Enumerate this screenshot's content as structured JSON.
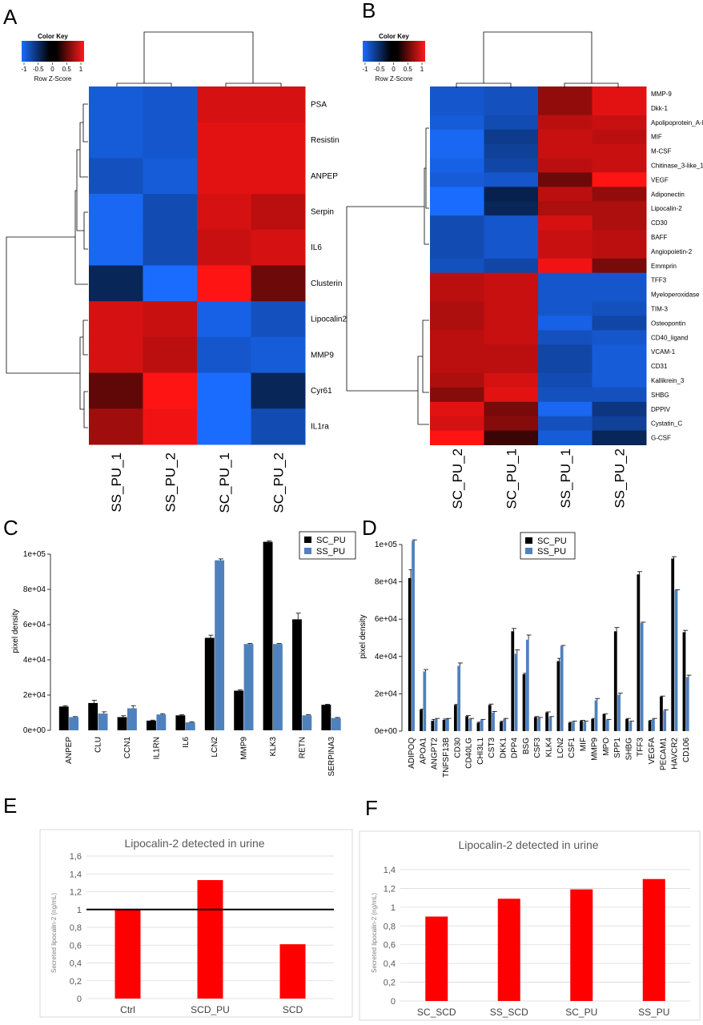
{
  "panels": {
    "a": "A",
    "b": "B",
    "c": "C",
    "d": "D",
    "e": "E",
    "f": "F"
  },
  "color_key": {
    "title": "Color Key",
    "xlabel": "Row Z-Score",
    "ticks": [
      "-1",
      "-0.5",
      "0",
      "0.5",
      "1"
    ],
    "low_color": "#1a6cff",
    "mid_color": "#000000",
    "high_color": "#ff1a1a"
  },
  "chart_data": [
    {
      "id": "A",
      "type": "heatmap",
      "columns": [
        "SS_PU_1",
        "SS_PU_2",
        "SC_PU_1",
        "SC_PU_2"
      ],
      "rows": [
        "PSA",
        "Resistin",
        "ANPEP",
        "Serpin",
        "IL6",
        "Clusterin",
        "Lipocalin2",
        "MMP9",
        "Cyr61",
        "IL1ra"
      ],
      "values": [
        [
          -0.85,
          -0.8,
          0.85,
          0.85
        ],
        [
          -0.85,
          -0.8,
          0.9,
          0.9
        ],
        [
          -0.75,
          -0.85,
          0.9,
          0.9
        ],
        [
          -0.95,
          -0.7,
          0.85,
          0.75
        ],
        [
          -0.95,
          -0.7,
          0.8,
          0.85
        ],
        [
          -0.35,
          -1.0,
          1.0,
          0.45
        ],
        [
          0.85,
          0.8,
          -0.9,
          -0.75
        ],
        [
          0.85,
          0.75,
          -0.8,
          -0.85
        ],
        [
          0.4,
          1.0,
          -1.0,
          -0.35
        ],
        [
          0.65,
          0.95,
          -1.0,
          -0.7
        ]
      ]
    },
    {
      "id": "B",
      "type": "heatmap",
      "columns": [
        "SC_PU_2",
        "SC_PU_1",
        "SS_PU_1",
        "SS_PU_2"
      ],
      "rows": [
        "MMP-9",
        "Dkk-1",
        "Apolipoprotein_A-I",
        "MIF",
        "M-CSF",
        "Chitinase_3-like_1",
        "VEGF",
        "Adiponectin",
        "Lipocalin-2",
        "CD30",
        "BAFF",
        "Angiopoietin-2",
        "Emmprin",
        "TFF3",
        "Myeloperoxidase",
        "TIM-3",
        "Osteopontin",
        "CD40_ligand",
        "VCAM-1",
        "CD31",
        "Kallikrein_3",
        "SHBG",
        "DPPIV",
        "Cystatin_C",
        "G-CSF"
      ],
      "values": [
        [
          -0.8,
          -0.75,
          0.6,
          0.9
        ],
        [
          -0.8,
          -0.75,
          0.6,
          0.9
        ],
        [
          -0.85,
          -0.7,
          0.75,
          0.8
        ],
        [
          -0.95,
          -0.55,
          0.8,
          0.75
        ],
        [
          -0.95,
          -0.6,
          0.8,
          0.8
        ],
        [
          -0.9,
          -0.65,
          0.75,
          0.8
        ],
        [
          -0.85,
          -0.8,
          0.45,
          1.0
        ],
        [
          -1.0,
          -0.3,
          0.75,
          0.6
        ],
        [
          -1.0,
          -0.35,
          0.7,
          0.7
        ],
        [
          -0.7,
          -0.8,
          0.85,
          0.7
        ],
        [
          -0.7,
          -0.8,
          0.8,
          0.75
        ],
        [
          -0.7,
          -0.8,
          0.8,
          0.75
        ],
        [
          -0.75,
          -0.65,
          0.95,
          0.5
        ],
        [
          0.75,
          0.8,
          -0.8,
          -0.8
        ],
        [
          0.75,
          0.8,
          -0.8,
          -0.8
        ],
        [
          0.7,
          0.8,
          -0.8,
          -0.75
        ],
        [
          0.7,
          0.8,
          -0.9,
          -0.65
        ],
        [
          0.75,
          0.8,
          -0.75,
          -0.8
        ],
        [
          0.75,
          0.75,
          -0.65,
          -0.85
        ],
        [
          0.75,
          0.75,
          -0.65,
          -0.85
        ],
        [
          0.7,
          0.85,
          -0.7,
          -0.85
        ],
        [
          0.55,
          0.9,
          -0.75,
          -0.75
        ],
        [
          0.9,
          0.5,
          -0.95,
          -0.5
        ],
        [
          0.85,
          0.55,
          -0.75,
          -0.6
        ],
        [
          1.0,
          0.25,
          -0.85,
          -0.35
        ]
      ]
    },
    {
      "id": "C",
      "type": "bar",
      "title": "",
      "xlabel": "",
      "ylabel": "pixel density",
      "ylim": [
        0,
        100000
      ],
      "yticks": [
        0,
        20000,
        40000,
        60000,
        80000,
        100000
      ],
      "ytick_labels": [
        "0e+00",
        "2e+04",
        "4e+04",
        "6e+04",
        "8e+04",
        "1e+05"
      ],
      "categories": [
        "ANPEP",
        "CLU",
        "CCN1",
        "IL1RN",
        "IL6",
        "LCN2",
        "MMP9",
        "KLK3",
        "RETN",
        "SERPINA3"
      ],
      "series": [
        {
          "name": "SC_PU",
          "color": "#000000",
          "values": [
            13500,
            15500,
            7500,
            5500,
            8500,
            52500,
            22500,
            107000,
            63000,
            14500
          ],
          "errors": [
            500,
            1500,
            800,
            300,
            300,
            1500,
            400,
            500,
            3500,
            300
          ]
        },
        {
          "name": "SS_PU",
          "color": "#4f81bd",
          "values": [
            7500,
            9500,
            12500,
            9000,
            4500,
            96500,
            49000,
            49000,
            8500,
            7000
          ],
          "errors": [
            300,
            1000,
            1500,
            400,
            300,
            800,
            300,
            300,
            400,
            300
          ]
        }
      ]
    },
    {
      "id": "D",
      "type": "bar",
      "title": "",
      "xlabel": "",
      "ylabel": "pixel density",
      "ylim": [
        0,
        100000
      ],
      "yticks": [
        0,
        20000,
        40000,
        60000,
        80000,
        100000
      ],
      "ytick_labels": [
        "0e+00",
        "2e+04",
        "4e+04",
        "6e+04",
        "8e+04",
        "1e+05"
      ],
      "categories": [
        "ADIPOQ",
        "APOA1",
        "ANGPT2",
        "TNFSF13B",
        "CD30",
        "CD40LG",
        "CHI3L1",
        "CST3",
        "DKK1",
        "DPP4",
        "BSG",
        "CSF3",
        "KLK4",
        "LCN2",
        "CSF1",
        "MIF",
        "MMP9",
        "MPO",
        "SPP1",
        "SHBG",
        "TFF3",
        "VEGFA",
        "PECAM1",
        "HAVCR2",
        "CD106"
      ],
      "series": [
        {
          "name": "SC_PU",
          "color": "#000000",
          "values": [
            82000,
            11500,
            5500,
            6000,
            14000,
            8000,
            4500,
            14000,
            5000,
            53500,
            30500,
            7500,
            10000,
            37500,
            4500,
            5500,
            6500,
            9000,
            53500,
            6500,
            84000,
            5500,
            18500,
            92500,
            53000
          ],
          "errors": [
            4500,
            300,
            800,
            500,
            300,
            300,
            300,
            500,
            300,
            1500,
            500,
            300,
            300,
            1500,
            300,
            300,
            300,
            300,
            2000,
            300,
            1500,
            300,
            300,
            1000,
            1000
          ]
        },
        {
          "name": "SS_PU",
          "color": "#4f81bd",
          "values": [
            102000,
            32000,
            6500,
            6500,
            35000,
            6500,
            6000,
            10000,
            6500,
            41500,
            49000,
            7000,
            7500,
            45500,
            5000,
            5000,
            16500,
            6000,
            19500,
            5000,
            58000,
            6500,
            11000,
            75500,
            29000
          ],
          "errors": [
            500,
            1000,
            300,
            300,
            1500,
            300,
            300,
            500,
            300,
            2000,
            2500,
            300,
            300,
            400,
            300,
            300,
            1000,
            300,
            800,
            300,
            400,
            300,
            400,
            300,
            1000
          ]
        }
      ]
    },
    {
      "id": "E",
      "type": "bar",
      "title": "Lipocalin-2 detected in urine",
      "xlabel": "",
      "ylabel": "Secreted lipocalin-2 (ng/mL)",
      "ylim": [
        0,
        1.6
      ],
      "yticks": [
        0,
        0.2,
        0.4,
        0.6,
        0.8,
        1,
        1.2,
        1.4,
        1.6
      ],
      "ytick_labels": [
        "0",
        "0,2",
        "0,4",
        "0,6",
        "0,8",
        "1",
        "1,2",
        "1,4",
        "1,6"
      ],
      "categories": [
        "Ctrl",
        "SCD_PU",
        "SCD"
      ],
      "values": [
        1.0,
        1.33,
        0.61
      ],
      "color": "#ff0000",
      "reference_line": 1.0
    },
    {
      "id": "F",
      "type": "bar",
      "title": "Lipocalin-2 detected in urine",
      "xlabel": "",
      "ylabel": "Secreted lipocalin-2 (ng/mL)",
      "ylim": [
        0,
        1.4
      ],
      "yticks": [
        0,
        0.2,
        0.4,
        0.6,
        0.8,
        1,
        1.2,
        1.4
      ],
      "ytick_labels": [
        "0",
        "0,2",
        "0,4",
        "0,6",
        "0,8",
        "1",
        "1,2",
        "1,4"
      ],
      "categories": [
        "SC_SCD",
        "SS_SCD",
        "SC_PU",
        "SS_PU"
      ],
      "values": [
        0.9,
        1.09,
        1.19,
        1.3
      ],
      "color": "#ff0000"
    }
  ]
}
